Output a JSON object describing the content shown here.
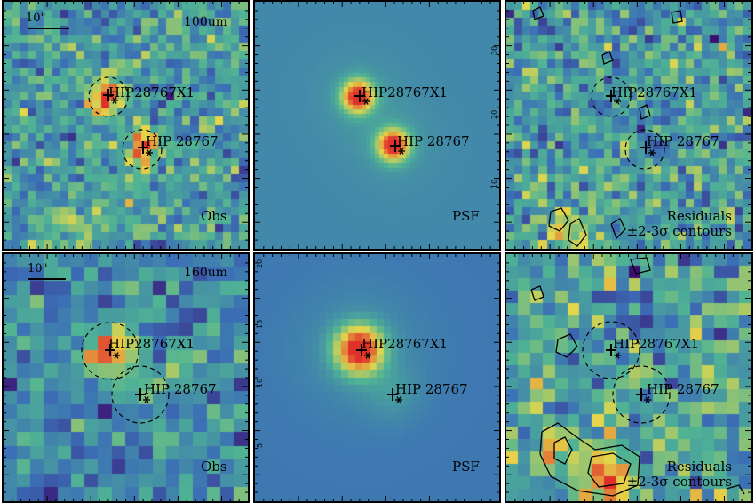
{
  "figure": {
    "rows": [
      {
        "band_label": "100um",
        "scale_label": "10\"",
        "panels": [
          {
            "role": "observed",
            "label": "Obs"
          },
          {
            "role": "psf",
            "label": "PSF"
          },
          {
            "role": "residuals",
            "label": "Residuals",
            "sublabel": "±2-3σ contours"
          }
        ]
      },
      {
        "band_label": "160um",
        "scale_label": "10\"",
        "panels": [
          {
            "role": "observed",
            "label": "Obs"
          },
          {
            "role": "psf",
            "label": "PSF"
          },
          {
            "role": "residuals",
            "label": "Residuals",
            "sublabel": "±2-3σ contours"
          }
        ]
      }
    ],
    "sources": [
      {
        "name": "HIP28767X1"
      },
      {
        "name": "HIP 28767"
      }
    ],
    "axis_tick_labels_psf_panel": {
      "top_row_right": [
        "30",
        "20",
        "10"
      ],
      "bottom_row_left": [
        "20",
        "15",
        "10",
        "5"
      ]
    },
    "colormap": {
      "low": "#3b0f70",
      "mid_low": "#3b6fb6",
      "mid": "#4fb394",
      "mid_high": "#e6d84a",
      "high": "#e0302a"
    }
  }
}
